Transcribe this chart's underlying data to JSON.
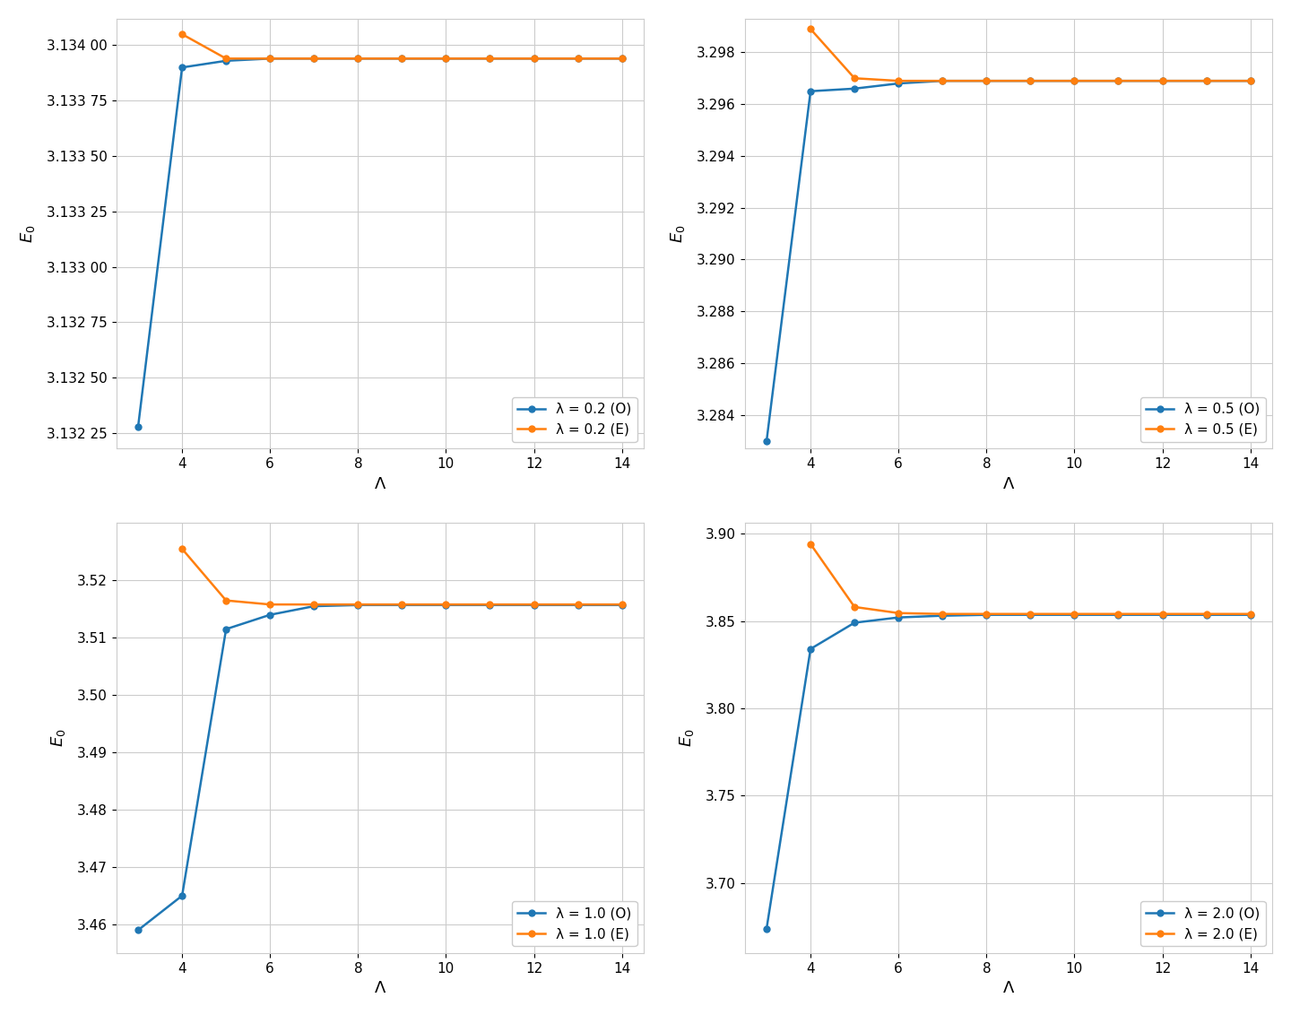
{
  "subplots": [
    {
      "lambda": 0.2,
      "xlabel": "Λ",
      "ylabel": "$E_0$",
      "legend_O": "λ = 0.2 (O)",
      "legend_E": "λ = 0.2 (E)",
      "x_O": [
        3,
        4,
        5,
        6,
        7,
        8,
        9,
        10,
        11,
        12,
        13,
        14
      ],
      "y_O": [
        3.13228,
        3.1339,
        3.13393,
        3.13394,
        3.13394,
        3.13394,
        3.13394,
        3.13394,
        3.13394,
        3.13394,
        3.13394,
        3.13394
      ],
      "x_E": [
        4,
        5,
        6,
        7,
        8,
        9,
        10,
        11,
        12,
        13,
        14
      ],
      "y_E": [
        3.13405,
        3.13394,
        3.13394,
        3.13394,
        3.13394,
        3.13394,
        3.13394,
        3.13394,
        3.13394,
        3.13394,
        3.13394
      ],
      "ylim": [
        3.13218,
        3.13412
      ],
      "ytick_vals": [
        3.13225,
        3.1325,
        3.13275,
        3.133,
        3.13325,
        3.1335,
        3.13375,
        3.134
      ],
      "ytick_labels": [
        "3.132 25",
        "3.132 50",
        "3.132 75",
        "3.133 00",
        "3.133 25",
        "3.133 50",
        "3.133 75",
        "3.134 00"
      ]
    },
    {
      "lambda": 0.5,
      "xlabel": "Λ",
      "ylabel": "$E_0$",
      "legend_O": "λ = 0.5 (O)",
      "legend_E": "λ = 0.5 (E)",
      "x_O": [
        3,
        4,
        5,
        6,
        7,
        8,
        9,
        10,
        11,
        12,
        13,
        14
      ],
      "y_O": [
        3.283,
        3.2965,
        3.2966,
        3.2968,
        3.2969,
        3.2969,
        3.2969,
        3.2969,
        3.2969,
        3.2969,
        3.2969,
        3.2969
      ],
      "x_E": [
        4,
        5,
        6,
        7,
        8,
        9,
        10,
        11,
        12,
        13,
        14
      ],
      "y_E": [
        3.2989,
        3.297,
        3.2969,
        3.2969,
        3.2969,
        3.2969,
        3.2969,
        3.2969,
        3.2969,
        3.2969,
        3.2969
      ],
      "ylim": [
        3.2827,
        3.2993
      ],
      "ytick_vals": [
        3.284,
        3.286,
        3.288,
        3.29,
        3.292,
        3.294,
        3.296,
        3.298
      ],
      "ytick_labels": [
        "3.284",
        "3.286",
        "3.288",
        "3.290",
        "3.292",
        "3.294",
        "3.296",
        "3.298"
      ]
    },
    {
      "lambda": 1.0,
      "xlabel": "Λ",
      "ylabel": "$E_0$",
      "legend_O": "λ = 1.0 (O)",
      "legend_E": "λ = 1.0 (E)",
      "x_O": [
        3,
        4,
        5,
        6,
        7,
        8,
        9,
        10,
        11,
        12,
        13,
        14
      ],
      "y_O": [
        3.459,
        3.465,
        3.5115,
        3.514,
        3.5155,
        3.5157,
        3.5157,
        3.5157,
        3.5157,
        3.5157,
        3.5157,
        3.5157
      ],
      "x_E": [
        4,
        5,
        6,
        7,
        8,
        9,
        10,
        11,
        12,
        13,
        14
      ],
      "y_E": [
        3.5255,
        3.5165,
        3.5158,
        3.5158,
        3.5158,
        3.5158,
        3.5158,
        3.5158,
        3.5158,
        3.5158,
        3.5158
      ],
      "ylim": [
        3.455,
        3.53
      ],
      "ytick_vals": [
        3.46,
        3.47,
        3.48,
        3.49,
        3.5,
        3.51,
        3.52
      ],
      "ytick_labels": [
        "3.46",
        "3.47",
        "3.48",
        "3.49",
        "3.50",
        "3.51",
        "3.52"
      ]
    },
    {
      "lambda": 2.0,
      "xlabel": "Λ",
      "ylabel": "$E_0$",
      "legend_O": "λ = 2.0 (O)",
      "legend_E": "λ = 2.0 (E)",
      "x_O": [
        3,
        4,
        5,
        6,
        7,
        8,
        9,
        10,
        11,
        12,
        13,
        14
      ],
      "y_O": [
        3.674,
        3.834,
        3.849,
        3.852,
        3.853,
        3.8535,
        3.8535,
        3.8535,
        3.8535,
        3.8535,
        3.8535,
        3.8535
      ],
      "x_E": [
        4,
        5,
        6,
        7,
        8,
        9,
        10,
        11,
        12,
        13,
        14
      ],
      "y_E": [
        3.894,
        3.858,
        3.8545,
        3.854,
        3.854,
        3.854,
        3.854,
        3.854,
        3.854,
        3.854,
        3.854
      ],
      "ylim": [
        3.66,
        3.906
      ],
      "ytick_vals": [
        3.7,
        3.75,
        3.8,
        3.85,
        3.9
      ],
      "ytick_labels": [
        "3.70",
        "3.75",
        "3.80",
        "3.85",
        "3.90"
      ]
    }
  ],
  "color_O": "#1f77b4",
  "color_E": "#ff7f0e",
  "marker": "o",
  "linewidth": 1.8,
  "markersize": 5,
  "grid_color": "#cccccc",
  "xticks": [
    4,
    6,
    8,
    10,
    12,
    14
  ],
  "xlim": [
    2.5,
    14.5
  ]
}
